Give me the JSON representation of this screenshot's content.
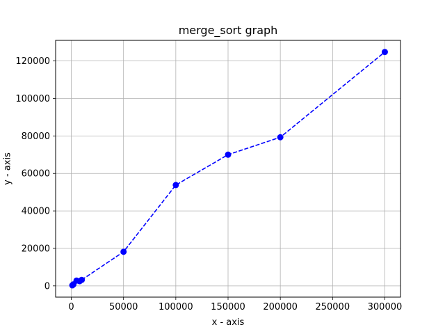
{
  "chart_data": {
    "type": "line",
    "title": "merge_sort graph",
    "xlabel": "x - axis",
    "ylabel": "y - axis",
    "xlim": [
      -15000,
      315000
    ],
    "ylim": [
      -6000,
      131000
    ],
    "xticks": [
      0,
      50000,
      100000,
      150000,
      200000,
      250000,
      300000
    ],
    "yticks": [
      0,
      20000,
      40000,
      60000,
      80000,
      100000,
      120000
    ],
    "grid": true,
    "series": [
      {
        "color": "#0000ff",
        "line_style": "dashed",
        "marker": "circle",
        "x": [
          1000,
          2000,
          5000,
          8000,
          10000,
          50000,
          100000,
          150000,
          200000,
          300000
        ],
        "y": [
          300,
          800,
          2800,
          2500,
          3200,
          18200,
          53800,
          70000,
          79300,
          124800
        ]
      }
    ]
  }
}
